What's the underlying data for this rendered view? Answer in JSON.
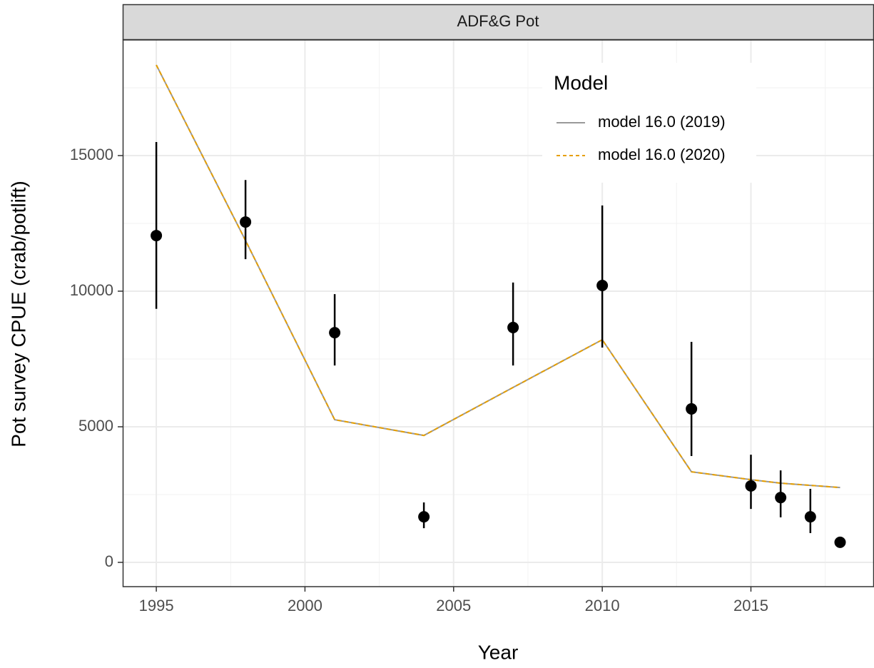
{
  "chart_data": {
    "type": "line",
    "panel_title": "ADF&G Pot",
    "x_label": "Year",
    "y_label": "Pot survey CPUE (crab/potlift)",
    "legend_title": "Model",
    "xlim": [
      1993.87,
      2019.14
    ],
    "ylim": [
      -895,
      19263
    ],
    "xticks": [
      1995,
      2000,
      2005,
      2010,
      2015
    ],
    "yticks": [
      0,
      5000,
      10000,
      15000
    ],
    "grid": true,
    "observed": {
      "x": [
        1995,
        1998,
        2001,
        2004,
        2007,
        2010,
        2013,
        2015,
        2016,
        2017,
        2018
      ],
      "values": [
        12050,
        12550,
        8470,
        1680,
        8660,
        10210,
        5660,
        2820,
        2390,
        1680,
        740
      ],
      "lower": [
        9350,
        11180,
        7260,
        1260,
        7260,
        7920,
        3920,
        1970,
        1660,
        1080,
        600
      ],
      "upper": [
        15500,
        14100,
        9890,
        2210,
        10320,
        13160,
        8130,
        3970,
        3390,
        2710,
        900
      ],
      "color": "#000000"
    },
    "x": [
      1995,
      1998,
      2001,
      2004,
      2007,
      2010,
      2013,
      2015,
      2016,
      2017,
      2018
    ],
    "series": [
      {
        "name": "model 16.0 (2019)",
        "color": "#999999",
        "dash": "solid",
        "values": [
          18340,
          11870,
          5260,
          4680,
          6450,
          8210,
          3340,
          3050,
          2920,
          2840,
          2760
        ]
      },
      {
        "name": "model 16.0 (2020)",
        "color": "#E69F00",
        "dash": "dashed",
        "values": [
          18340,
          11870,
          5260,
          4680,
          6450,
          8210,
          3340,
          3050,
          2920,
          2840,
          2760
        ]
      }
    ]
  }
}
